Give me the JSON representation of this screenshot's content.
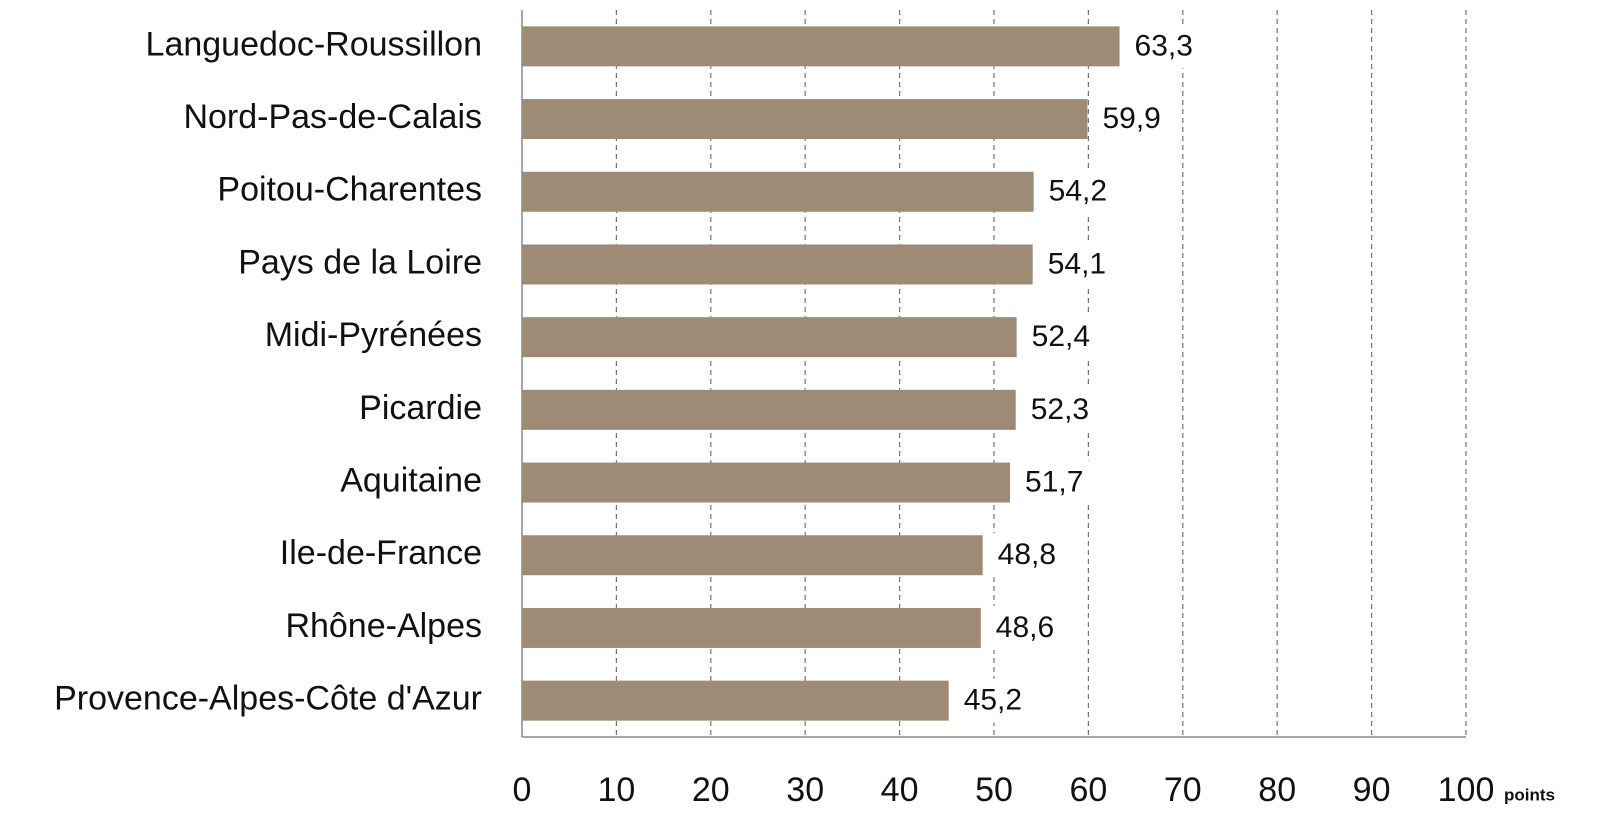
{
  "chart_data": {
    "type": "bar",
    "orientation": "horizontal",
    "categories": [
      "Languedoc-Roussillon",
      "Nord-Pas-de-Calais",
      "Poitou-Charentes",
      "Pays de la Loire",
      "Midi-Pyrénées",
      "Picardie",
      "Aquitaine",
      "Ile-de-France",
      "Rhône-Alpes",
      "Provence-Alpes-Côte d'Azur"
    ],
    "values": [
      63.3,
      59.9,
      54.2,
      54.1,
      52.4,
      52.3,
      51.7,
      48.8,
      48.6,
      45.2
    ],
    "value_labels": [
      "63,3",
      "59,9",
      "54,2",
      "54,1",
      "52,4",
      "52,3",
      "51,7",
      "48,8",
      "48,6",
      "45,2"
    ],
    "color": "#9e8b76",
    "xlim": [
      0,
      100
    ],
    "xticks": [
      0,
      10,
      20,
      30,
      40,
      50,
      60,
      70,
      80,
      90,
      100
    ],
    "xlabel": "points",
    "grid": true
  }
}
